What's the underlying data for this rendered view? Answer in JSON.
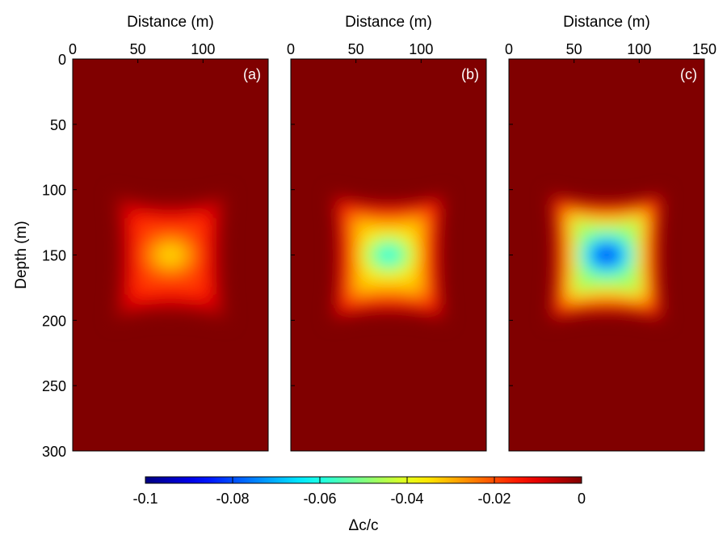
{
  "chart_data": {
    "type": "heatmap",
    "colormap": "jet",
    "background_color": "#800000",
    "colorbar": {
      "label": "Δc/c",
      "range": [
        -0.1,
        0
      ],
      "tick_values": [
        -0.1,
        -0.08,
        -0.06,
        -0.04,
        -0.02,
        0
      ],
      "tick_labels": [
        "-0.1",
        "-0.08",
        "-0.06",
        "-0.04",
        "-0.02",
        "0"
      ]
    },
    "y_axis": {
      "label": "Depth (m)",
      "range": [
        0,
        300
      ],
      "reversed": true,
      "tick_values": [
        0,
        50,
        100,
        150,
        200,
        250,
        300
      ],
      "tick_labels": [
        "0",
        "50",
        "100",
        "150",
        "200",
        "250",
        "300"
      ]
    },
    "panels": [
      {
        "label": "(a)",
        "xlabel": "Distance (m)",
        "xlim": [
          0,
          150
        ],
        "x_tick_values": [
          0,
          50,
          100
        ],
        "x_tick_labels": [
          "0",
          "50",
          "100"
        ],
        "anomaly": {
          "center_x": 75,
          "center_depth": 150,
          "min_value": -0.035
        }
      },
      {
        "label": "(b)",
        "xlabel": "Distance (m)",
        "xlim": [
          0,
          150
        ],
        "x_tick_values": [
          0,
          50,
          100
        ],
        "x_tick_labels": [
          "0",
          "50",
          "100"
        ],
        "anomaly": {
          "center_x": 75,
          "center_depth": 150,
          "min_value": -0.062
        }
      },
      {
        "label": "(c)",
        "xlabel": "Distance (m)",
        "xlim": [
          0,
          150
        ],
        "x_tick_values": [
          0,
          50,
          100,
          150
        ],
        "x_tick_labels": [
          "0",
          "50",
          "100",
          "150"
        ],
        "anomaly": {
          "center_x": 75,
          "center_depth": 150,
          "min_value": -0.088
        }
      }
    ]
  }
}
